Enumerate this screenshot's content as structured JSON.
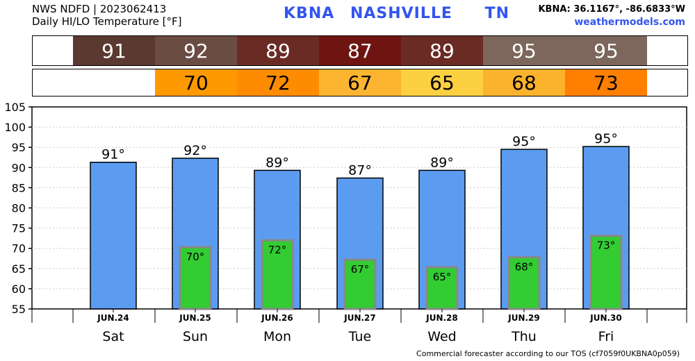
{
  "header": {
    "source": "NWS NDFD | 2023062413",
    "subtitle": "Daily HI/LO Temperature [°F]",
    "station_code": "KBNA",
    "city": "NASHVILLE",
    "state": "TN",
    "coords": "KBNA: 36.1167°, -86.6833°W",
    "site": "weathermodels.com"
  },
  "footer": "Commercial forecaster according to our TOS (cf7059f0UKBNA0p059)",
  "hi_strip": [
    {
      "value": "91",
      "color": "#5a3a30"
    },
    {
      "value": "92",
      "color": "#6b4c42"
    },
    {
      "value": "89",
      "color": "#6a2b25"
    },
    {
      "value": "87",
      "color": "#6e1512"
    },
    {
      "value": "89",
      "color": "#6a2b25"
    },
    {
      "value": "95",
      "color": "#7d665c"
    },
    {
      "value": "95",
      "color": "#7d665c"
    }
  ],
  "lo_strip": [
    {
      "value": "70",
      "color": "#ff9900"
    },
    {
      "value": "72",
      "color": "#ff8c00"
    },
    {
      "value": "67",
      "color": "#fdb531"
    },
    {
      "value": "65",
      "color": "#fdd042"
    },
    {
      "value": "68",
      "color": "#fbb22d"
    },
    {
      "value": "73",
      "color": "#ff7f00"
    }
  ],
  "chart_data": {
    "type": "bar",
    "title": "Daily HI/LO Temperature [°F]",
    "categories": [
      "Sat",
      "Sun",
      "Mon",
      "Tue",
      "Wed",
      "Thu",
      "Fri"
    ],
    "dates": [
      "JUN.24",
      "JUN.25",
      "JUN.26",
      "JUN.27",
      "JUN.28",
      "JUN.29",
      "JUN.30"
    ],
    "ylim": [
      55,
      105
    ],
    "yticks": [
      55,
      60,
      65,
      70,
      75,
      80,
      85,
      90,
      95,
      100,
      105
    ],
    "grid": true,
    "series": [
      {
        "name": "HI",
        "values": [
          91.3,
          92.3,
          89.3,
          87.4,
          89.3,
          94.5,
          95.2
        ],
        "labels": [
          "91°",
          "92°",
          "89°",
          "87°",
          "89°",
          "95°",
          "95°"
        ],
        "color": "#5b9cf0"
      },
      {
        "name": "LO",
        "values": [
          null,
          70.3,
          72.0,
          67.2,
          65.3,
          67.8,
          73.1
        ],
        "labels": [
          "",
          "70°",
          "72°",
          "67°",
          "65°",
          "68°",
          "73°"
        ],
        "color": "#33cc33"
      }
    ]
  }
}
